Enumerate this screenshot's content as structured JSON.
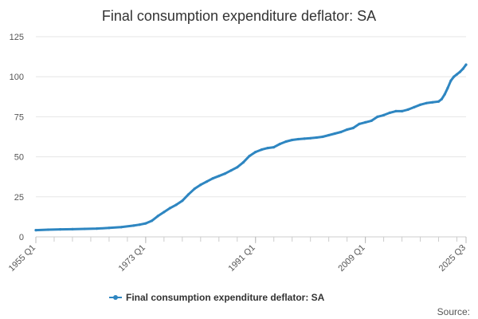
{
  "chart_data": {
    "type": "line",
    "title": "Final consumption expenditure deflator: SA",
    "xlabel": "",
    "ylabel": "",
    "ylim": [
      0,
      125
    ],
    "y_ticks": [
      0,
      25,
      50,
      75,
      100,
      125
    ],
    "y_tick_labels": [
      "0",
      "25",
      "50",
      "75",
      "100",
      "125"
    ],
    "x_tick_labels": [
      "1955 Q1",
      "1973 Q1",
      "1991 Q1",
      "2009 Q1",
      "2025 Q3"
    ],
    "x_tick_years": [
      1955.0,
      1973.0,
      1991.0,
      2009.0,
      2025.5
    ],
    "x_range": [
      1955.0,
      2025.5
    ],
    "grid": true,
    "legend_position": "bottom-center",
    "colors": {
      "series": "#2e86c1",
      "grid": "#e6e6e6",
      "axis": "#cccccc"
    },
    "series": [
      {
        "name": "Final consumption expenditure deflator: SA",
        "points": [
          [
            1955.0,
            4.2
          ],
          [
            1957.0,
            4.5
          ],
          [
            1959.0,
            4.7
          ],
          [
            1961.0,
            4.8
          ],
          [
            1963.0,
            5.0
          ],
          [
            1965.0,
            5.2
          ],
          [
            1967.0,
            5.6
          ],
          [
            1969.0,
            6.1
          ],
          [
            1971.0,
            7.0
          ],
          [
            1972.0,
            7.6
          ],
          [
            1973.0,
            8.4
          ],
          [
            1974.0,
            10.0
          ],
          [
            1975.0,
            13.0
          ],
          [
            1976.0,
            15.5
          ],
          [
            1977.0,
            18.0
          ],
          [
            1978.0,
            20.0
          ],
          [
            1979.0,
            22.5
          ],
          [
            1980.0,
            26.5
          ],
          [
            1981.0,
            30.0
          ],
          [
            1982.0,
            32.5
          ],
          [
            1983.0,
            34.5
          ],
          [
            1984.0,
            36.5
          ],
          [
            1985.0,
            38.0
          ],
          [
            1986.0,
            39.5
          ],
          [
            1987.0,
            41.5
          ],
          [
            1988.0,
            43.5
          ],
          [
            1989.0,
            46.5
          ],
          [
            1990.0,
            50.5
          ],
          [
            1991.0,
            53.0
          ],
          [
            1992.0,
            54.5
          ],
          [
            1993.0,
            55.5
          ],
          [
            1994.0,
            56.0
          ],
          [
            1995.0,
            58.0
          ],
          [
            1996.0,
            59.5
          ],
          [
            1997.0,
            60.5
          ],
          [
            1998.0,
            61.0
          ],
          [
            1999.0,
            61.3
          ],
          [
            2000.0,
            61.6
          ],
          [
            2001.0,
            62.0
          ],
          [
            2002.0,
            62.5
          ],
          [
            2003.0,
            63.5
          ],
          [
            2004.0,
            64.5
          ],
          [
            2005.0,
            65.5
          ],
          [
            2006.0,
            67.0
          ],
          [
            2007.0,
            68.0
          ],
          [
            2008.0,
            70.5
          ],
          [
            2009.0,
            71.5
          ],
          [
            2010.0,
            72.5
          ],
          [
            2011.0,
            75.0
          ],
          [
            2012.0,
            76.0
          ],
          [
            2013.0,
            77.5
          ],
          [
            2014.0,
            78.5
          ],
          [
            2015.0,
            78.5
          ],
          [
            2016.0,
            79.5
          ],
          [
            2017.0,
            81.0
          ],
          [
            2018.0,
            82.5
          ],
          [
            2019.0,
            83.5
          ],
          [
            2020.0,
            84.0
          ],
          [
            2021.0,
            84.5
          ],
          [
            2021.5,
            86.0
          ],
          [
            2022.0,
            89.0
          ],
          [
            2022.5,
            93.0
          ],
          [
            2023.0,
            97.5
          ],
          [
            2023.5,
            100.0
          ],
          [
            2024.0,
            101.5
          ],
          [
            2024.5,
            103.0
          ],
          [
            2025.0,
            105.0
          ],
          [
            2025.5,
            107.5
          ]
        ]
      }
    ],
    "legend": [
      {
        "label": "Final consumption expenditure deflator: SA",
        "color": "#2e86c1"
      }
    ],
    "source_label": "Source:"
  }
}
